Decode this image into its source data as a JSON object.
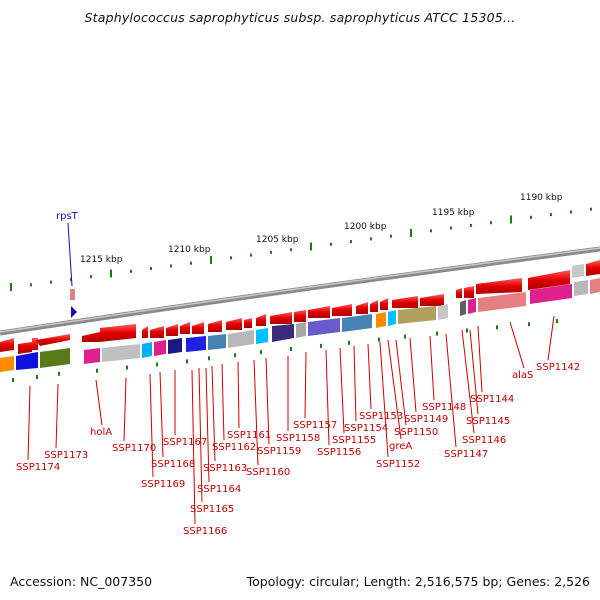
{
  "title": "Staphylococcus saprophyticus subsp. saprophyticus ATCC 15305...",
  "footer": {
    "accession": "Accession: NC_007350",
    "topology": "Topology: circular; Length: 2,516,575 bp; Genes: 2,526"
  },
  "ticks": [
    "1215 kbp",
    "1210 kbp",
    "1205 kbp",
    "1200 kbp",
    "1195 kbp",
    "1190 kbp"
  ],
  "top_gene": "rpsT",
  "labels": [
    "SSP1174",
    "SSP1173",
    "holA",
    "SSP1170",
    "SSP1169",
    "SSP1168",
    "SSP1167",
    "SSP1166",
    "SSP1165",
    "SSP1164",
    "SSP1163",
    "SSP1162",
    "SSP1161",
    "SSP1160",
    "SSP1159",
    "SSP1158",
    "SSP1157",
    "SSP1156",
    "SSP1155",
    "SSP1154",
    "SSP1153",
    "SSP1152",
    "greA",
    "SSP1150",
    "SSP1149",
    "SSP1148",
    "SSP1147",
    "SSP1146",
    "SSP1145",
    "SSP1144",
    "alaS",
    "SSP1142"
  ],
  "colors": {
    "gene_red": "#e00000",
    "label_red": "#c00000",
    "tick_green": "#1a7a1a",
    "backbone": "#888888",
    "rpsT_blue": "#1010c0"
  }
}
